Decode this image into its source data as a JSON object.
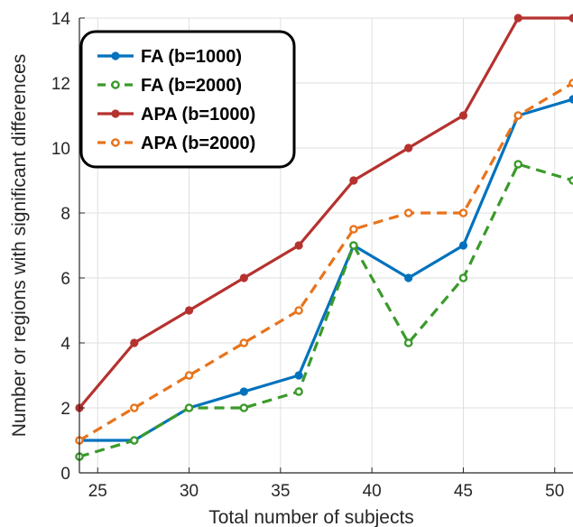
{
  "chart_data": {
    "type": "line",
    "xlabel": "Total number of subjects",
    "ylabel": "Number or regions with significant differences",
    "xlim": [
      24,
      51
    ],
    "ylim": [
      0,
      14
    ],
    "xticks": [
      25,
      30,
      35,
      40,
      45,
      50
    ],
    "yticks": [
      0,
      2,
      4,
      6,
      8,
      10,
      12,
      14
    ],
    "grid": true,
    "legend_position": "top-left",
    "x": [
      24,
      27,
      30,
      33,
      36,
      39,
      42,
      45,
      48,
      51
    ],
    "series": [
      {
        "name": "FA (b=1000)",
        "color": "#0072BD",
        "dash": "solid",
        "marker": "filled",
        "values": [
          1,
          1,
          2,
          2.5,
          3,
          7,
          6,
          7,
          11,
          11.5
        ]
      },
      {
        "name": "FA (b=2000)",
        "color": "#3A9A2A",
        "dash": "dashed",
        "marker": "open",
        "values": [
          0.5,
          1,
          2,
          2,
          2.5,
          7,
          4,
          6,
          9.5,
          9
        ]
      },
      {
        "name": "APA (b=1000)",
        "color": "#B5322F",
        "dash": "solid",
        "marker": "filled",
        "values": [
          2,
          4,
          5,
          6,
          7,
          9,
          10,
          11,
          14,
          14
        ]
      },
      {
        "name": "APA (b=2000)",
        "color": "#E8731B",
        "dash": "dashed",
        "marker": "open",
        "values": [
          1,
          2,
          3,
          4,
          5,
          7.5,
          8,
          8,
          11,
          12
        ]
      }
    ]
  }
}
